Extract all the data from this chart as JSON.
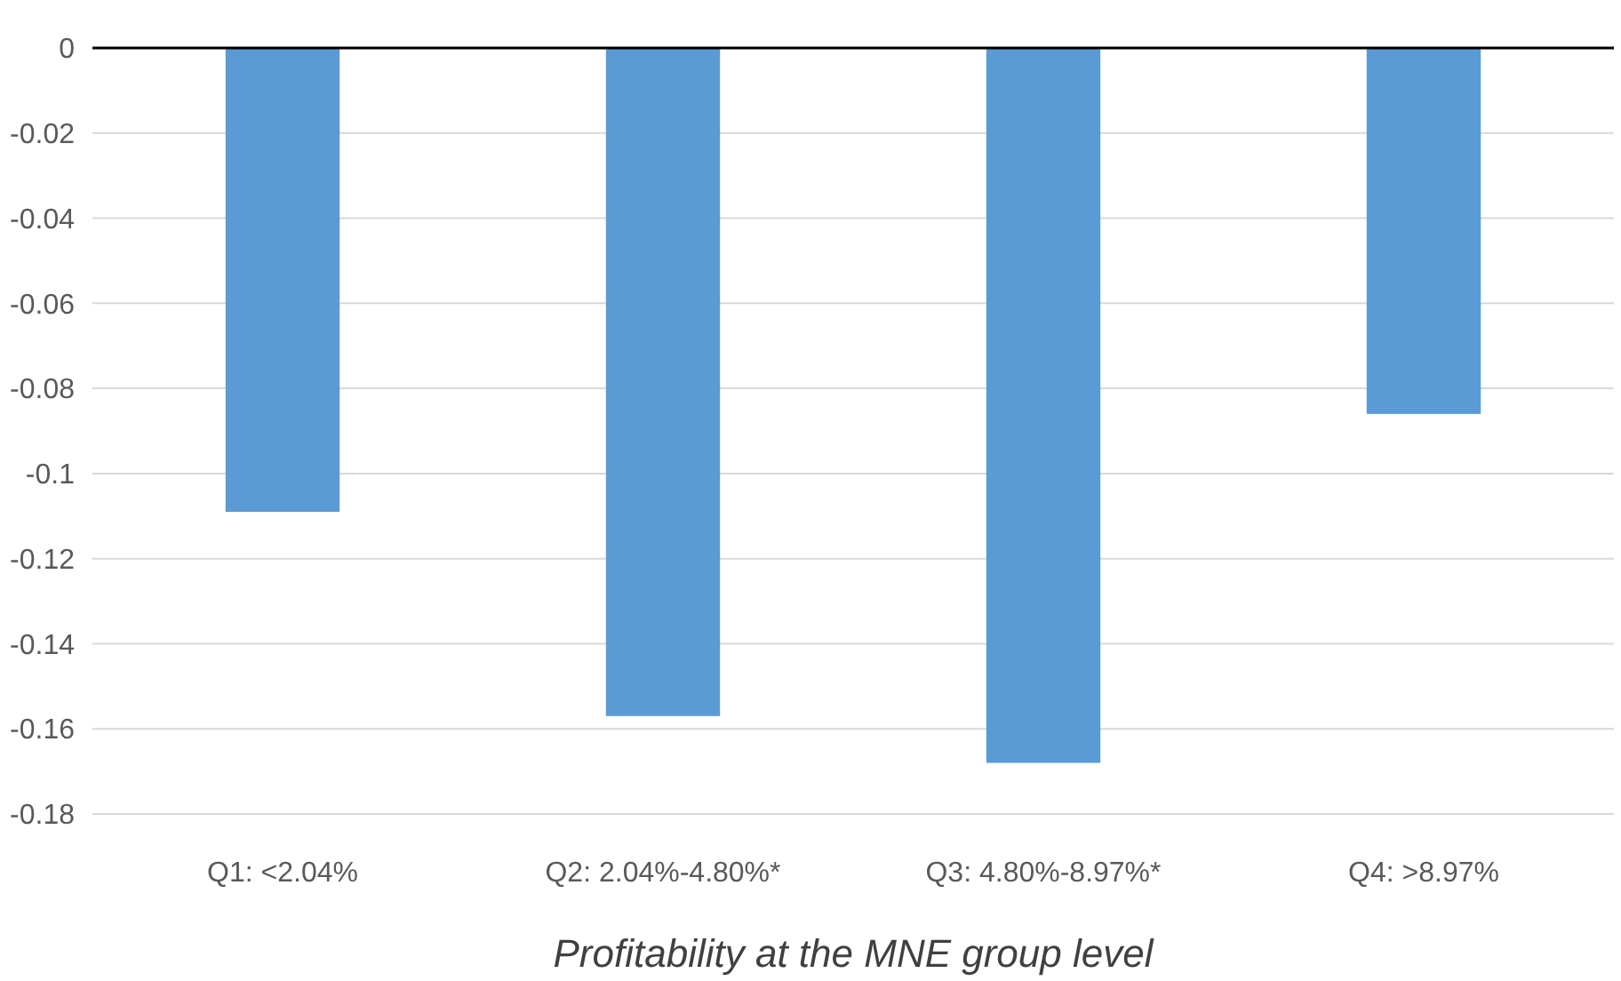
{
  "chart_data": {
    "type": "bar",
    "xlabel": "Profitability at the MNE group level",
    "categories": [
      "Q1: <2.04%",
      "Q2: 2.04%-4.80%*",
      "Q3: 4.80%-8.97%*",
      "Q4: >8.97%"
    ],
    "values": [
      -0.109,
      -0.157,
      -0.168,
      -0.086
    ],
    "color": "#5b9bd5",
    "ylim": [
      -0.18,
      0
    ],
    "yticks": [
      0,
      -0.02,
      -0.04,
      -0.06,
      -0.08,
      -0.1,
      -0.12,
      -0.14,
      -0.16,
      -0.18
    ],
    "grid": "y"
  }
}
